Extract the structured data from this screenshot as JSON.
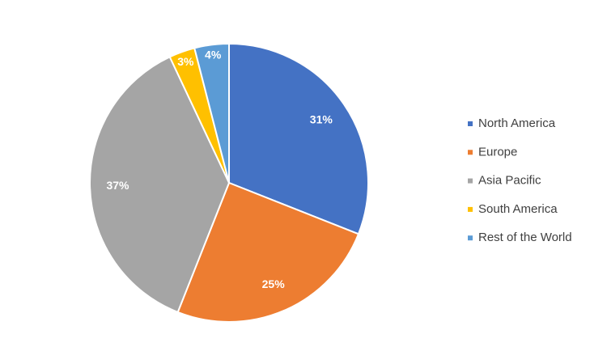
{
  "chart_data": {
    "type": "pie",
    "categories": [
      "North America",
      "Europe",
      "Asia Pacific",
      "South America",
      "Rest of the World"
    ],
    "values": [
      31,
      25,
      37,
      3,
      4
    ],
    "value_labels": [
      "31%",
      "25%",
      "37%",
      "3%",
      "4%"
    ],
    "colors": [
      "#4472c4",
      "#ed7d31",
      "#a5a5a5",
      "#ffc000",
      "#5b9bd5"
    ],
    "legend": "right"
  }
}
